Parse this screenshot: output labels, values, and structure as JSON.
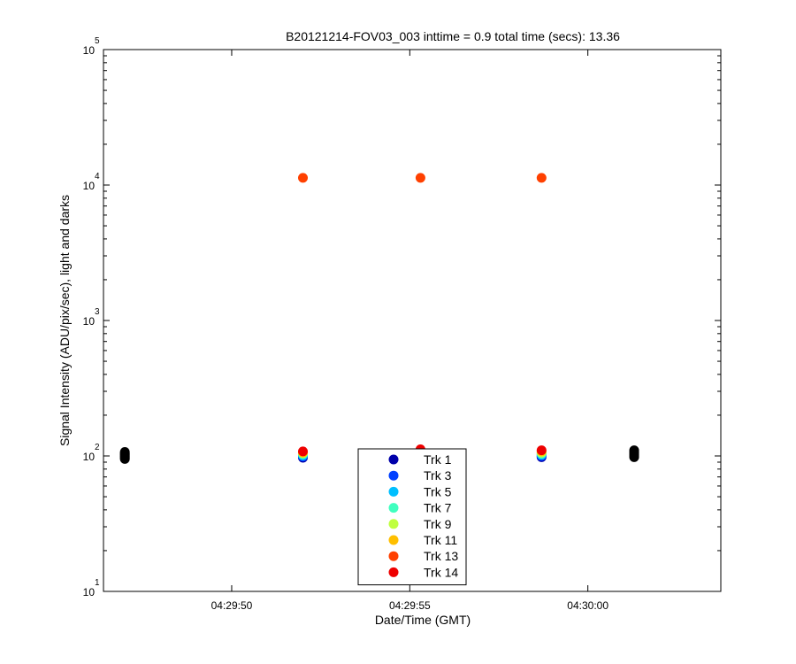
{
  "chart_data": {
    "type": "scatter",
    "title": "B20121214-FOV03_003 inttime = 0.9 total time (secs): 13.36",
    "xlabel": "Date/Time (GMT)",
    "ylabel": "Signal Intensity (ADU/pix/sec), light and darks",
    "y_scale": "log",
    "ylim": [
      10,
      100000
    ],
    "y_ticks": [
      {
        "value": 10,
        "base": "10",
        "exp": "1"
      },
      {
        "value": 100,
        "base": "10",
        "exp": "2"
      },
      {
        "value": 1000,
        "base": "10",
        "exp": "3"
      },
      {
        "value": 10000,
        "base": "10",
        "exp": "4"
      },
      {
        "value": 100000,
        "base": "10",
        "exp": "5"
      }
    ],
    "x_type": "time",
    "xlim": [
      "04:29:46.4",
      "04:30:02.0"
    ],
    "x_ticks": [
      "04:29:50",
      "04:29:55",
      "04:30:00"
    ],
    "grid": false,
    "legend": {
      "placement": "bottom-center"
    },
    "series": [
      {
        "name": "Trk 1",
        "color": "#0000aa",
        "points": [
          [
            "04:29:52.0",
            97
          ],
          [
            "04:29:55.3",
            100
          ],
          [
            "04:29:58.7",
            98
          ]
        ]
      },
      {
        "name": "Trk 3",
        "color": "#0040ff",
        "points": [
          [
            "04:29:52.0",
            99
          ],
          [
            "04:29:55.3",
            102
          ],
          [
            "04:29:58.7",
            100
          ]
        ]
      },
      {
        "name": "Trk 5",
        "color": "#00bfff",
        "points": [
          [
            "04:29:52.0",
            101
          ],
          [
            "04:29:55.3",
            104
          ],
          [
            "04:29:58.7",
            102
          ]
        ]
      },
      {
        "name": "Trk 7",
        "color": "#40ffbf",
        "points": [
          [
            "04:29:52.0",
            103
          ],
          [
            "04:29:55.3",
            106
          ],
          [
            "04:29:58.7",
            104
          ]
        ]
      },
      {
        "name": "Trk 9",
        "color": "#bfff40",
        "points": [
          [
            "04:29:52.0",
            105
          ],
          [
            "04:29:55.3",
            108
          ],
          [
            "04:29:58.7",
            106
          ]
        ]
      },
      {
        "name": "Trk 11",
        "color": "#ffbf00",
        "points": [
          [
            "04:29:52.0",
            106
          ],
          [
            "04:29:55.3",
            110
          ],
          [
            "04:29:58.7",
            108
          ]
        ]
      },
      {
        "name": "Trk 13",
        "color": "#ff4000",
        "points": [
          [
            "04:29:52.0",
            11300
          ],
          [
            "04:29:55.3",
            11300
          ],
          [
            "04:29:58.7",
            11300
          ]
        ]
      },
      {
        "name": "Trk 14",
        "color": "#ee0000",
        "points": [
          [
            "04:29:52.0",
            108
          ],
          [
            "04:29:55.3",
            112
          ],
          [
            "04:29:58.7",
            110
          ]
        ]
      }
    ],
    "darks": {
      "color": "#000000",
      "points": [
        [
          "04:29:47.0",
          95
        ],
        [
          "04:29:47.0",
          97
        ],
        [
          "04:29:47.0",
          99
        ],
        [
          "04:29:47.0",
          101
        ],
        [
          "04:29:47.0",
          103
        ],
        [
          "04:29:47.0",
          105
        ],
        [
          "04:29:47.0",
          107
        ],
        [
          "04:30:01.3",
          98
        ],
        [
          "04:30:01.3",
          100
        ],
        [
          "04:30:01.3",
          102
        ],
        [
          "04:30:01.3",
          104
        ],
        [
          "04:30:01.3",
          106
        ],
        [
          "04:30:01.3",
          108
        ],
        [
          "04:30:01.3",
          110
        ]
      ]
    }
  }
}
